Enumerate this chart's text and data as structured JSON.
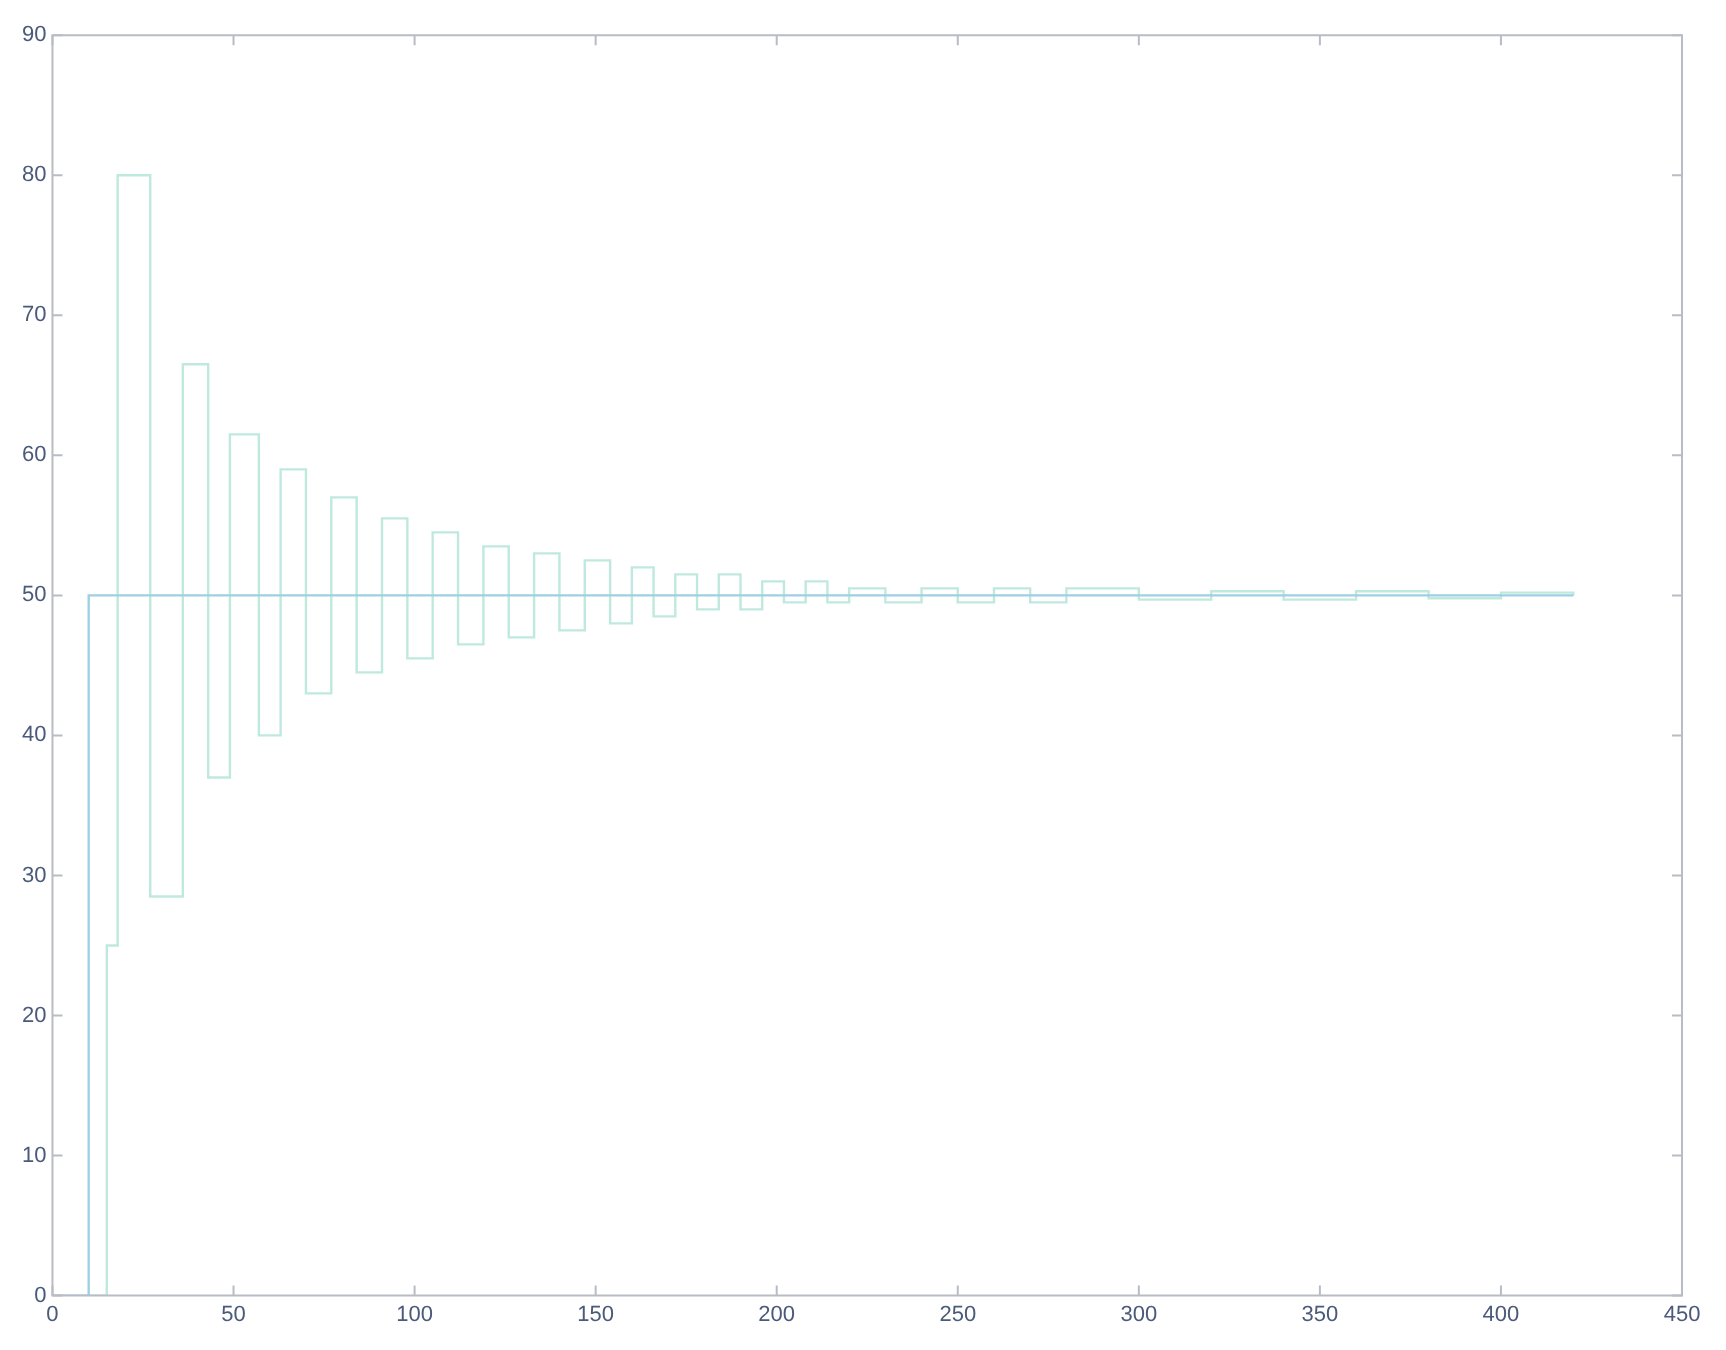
{
  "chart_data": {
    "type": "step",
    "xlim": [
      0,
      450
    ],
    "ylim": [
      0,
      90
    ],
    "xticks": [
      0,
      50,
      100,
      150,
      200,
      250,
      300,
      350,
      400,
      450
    ],
    "yticks": [
      0,
      10,
      20,
      30,
      40,
      50,
      60,
      70,
      80,
      90
    ],
    "grid": false,
    "legend": false,
    "series": [
      {
        "color": "#9fd0e2",
        "x": [
          0,
          10,
          420
        ],
        "values": [
          0,
          50,
          50
        ]
      },
      {
        "color": "#bfe9df",
        "x": [
          10,
          15,
          18,
          27,
          36,
          43,
          49,
          57,
          63,
          70,
          77,
          84,
          91,
          98,
          105,
          112,
          119,
          126,
          133,
          140,
          147,
          154,
          160,
          166,
          172,
          178,
          184,
          190,
          196,
          202,
          208,
          214,
          220,
          230,
          240,
          250,
          260,
          270,
          280,
          300,
          320,
          340,
          360,
          380,
          400,
          420
        ],
        "values": [
          0,
          25,
          80,
          28.5,
          66.5,
          37,
          61.5,
          40,
          59,
          43,
          57,
          44.5,
          55.5,
          45.5,
          54.5,
          46.5,
          53.5,
          47,
          53,
          47.5,
          52.5,
          48,
          52,
          48.5,
          51.5,
          49,
          51.5,
          49,
          51,
          49.5,
          51,
          49.5,
          50.5,
          49.5,
          50.5,
          49.5,
          50.5,
          49.5,
          50.5,
          49.7,
          50.3,
          49.7,
          50.3,
          49.8,
          50.2,
          50
        ]
      }
    ]
  }
}
